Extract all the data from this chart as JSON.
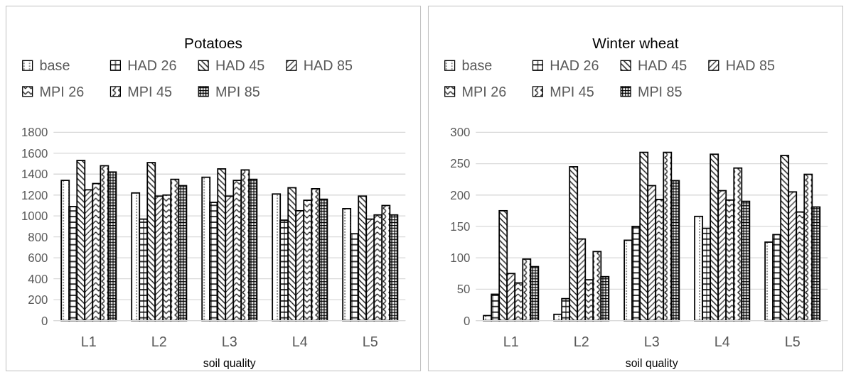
{
  "chart_data": [
    {
      "type": "bar",
      "title": "Potatoes",
      "xlabel": "soil quality",
      "categories": [
        "L1",
        "L2",
        "L3",
        "L4",
        "L5"
      ],
      "series": [
        {
          "name": "base",
          "color": "#000000",
          "values": [
            1340,
            1220,
            1370,
            1210,
            1070
          ]
        },
        {
          "name": "HAD 26",
          "color": "#000000",
          "values": [
            1090,
            970,
            1130,
            960,
            830
          ]
        },
        {
          "name": "HAD 45",
          "color": "#000000",
          "values": [
            1530,
            1510,
            1450,
            1270,
            1190
          ]
        },
        {
          "name": "HAD 85",
          "color": "#000000",
          "values": [
            1250,
            1190,
            1190,
            1050,
            970
          ]
        },
        {
          "name": "MPI 26",
          "color": "#000000",
          "values": [
            1310,
            1200,
            1340,
            1150,
            1010
          ]
        },
        {
          "name": "MPI 45",
          "color": "#000000",
          "values": [
            1480,
            1350,
            1440,
            1260,
            1100
          ]
        },
        {
          "name": "MPI 85",
          "color": "#000000",
          "values": [
            1420,
            1290,
            1350,
            1160,
            1010
          ]
        }
      ],
      "ylim": [
        0,
        1800
      ],
      "yticks": [
        0,
        200,
        400,
        600,
        800,
        1000,
        1200,
        1400,
        1600,
        1800
      ],
      "grid": "y",
      "legend": "top"
    },
    {
      "type": "bar",
      "title": "Winter wheat",
      "xlabel": "soil quality",
      "categories": [
        "L1",
        "L2",
        "L3",
        "L4",
        "L5"
      ],
      "series": [
        {
          "name": "base",
          "color": "#000000",
          "values": [
            8,
            10,
            128,
            166,
            125
          ]
        },
        {
          "name": "HAD 26",
          "color": "#000000",
          "values": [
            42,
            35,
            150,
            147,
            137
          ]
        },
        {
          "name": "HAD 45",
          "color": "#000000",
          "values": [
            175,
            245,
            268,
            265,
            263
          ]
        },
        {
          "name": "HAD 85",
          "color": "#000000",
          "values": [
            75,
            130,
            215,
            207,
            205
          ]
        },
        {
          "name": "MPI 26",
          "color": "#000000",
          "values": [
            60,
            65,
            193,
            192,
            173
          ]
        },
        {
          "name": "MPI 45",
          "color": "#000000",
          "values": [
            98,
            110,
            268,
            243,
            233
          ]
        },
        {
          "name": "MPI 85",
          "color": "#000000",
          "values": [
            86,
            70,
            223,
            190,
            181
          ]
        }
      ],
      "ylim": [
        0,
        300
      ],
      "yticks": [
        0,
        50,
        100,
        150,
        200,
        250,
        300
      ],
      "grid": "y",
      "legend": "top"
    }
  ]
}
